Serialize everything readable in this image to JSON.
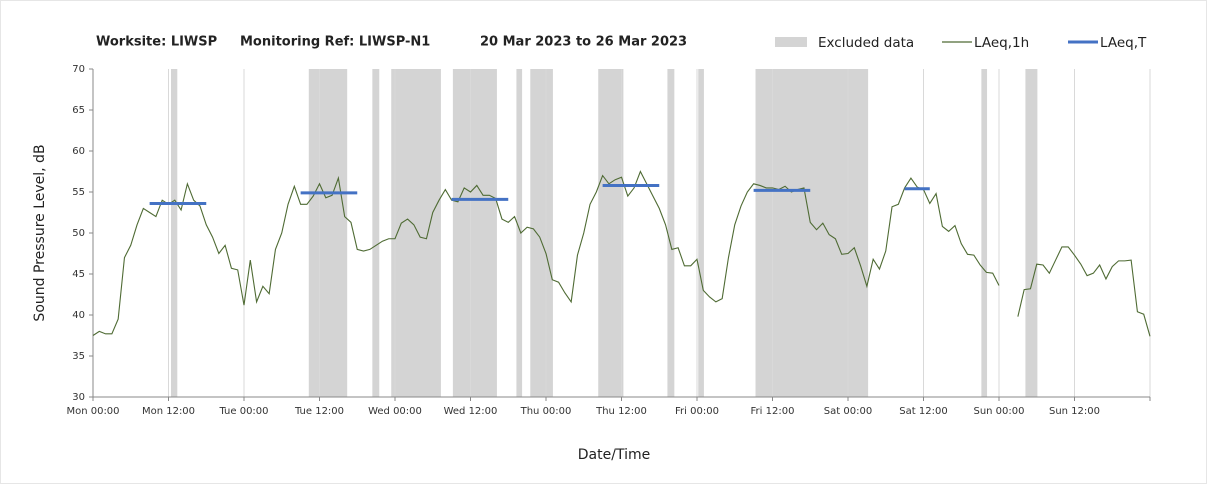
{
  "chart_data": {
    "type": "line",
    "title_parts": [
      "Worksite: LIWSP",
      "Monitoring Ref: LIWSP-N1",
      "20 Mar 2023 to 26 Mar 2023"
    ],
    "ylabel": "Sound Pressure Level, dB",
    "xlabel": "Date/Time",
    "xlim": [
      0,
      168
    ],
    "ylim": [
      30,
      70
    ],
    "yticks": [
      30,
      35,
      40,
      45,
      50,
      55,
      60,
      65,
      70
    ],
    "xticks": [
      {
        "value": 0,
        "label": "Mon 00:00"
      },
      {
        "value": 12,
        "label": "Mon 12:00"
      },
      {
        "value": 24,
        "label": "Tue 00:00"
      },
      {
        "value": 36,
        "label": "Tue 12:00"
      },
      {
        "value": 48,
        "label": "Wed 00:00"
      },
      {
        "value": 60,
        "label": "Wed 12:00"
      },
      {
        "value": 72,
        "label": "Thu 00:00"
      },
      {
        "value": 84,
        "label": "Thu 12:00"
      },
      {
        "value": 96,
        "label": "Fri 00:00"
      },
      {
        "value": 108,
        "label": "Fri 12:00"
      },
      {
        "value": 120,
        "label": "Sat 00:00"
      },
      {
        "value": 132,
        "label": "Sat 12:00"
      },
      {
        "value": 144,
        "label": "Sun 00:00"
      },
      {
        "value": 156,
        "label": "Sun 12:00"
      },
      {
        "value": 168,
        "label": ""
      }
    ],
    "grid": true,
    "excluded": {
      "name": "Excluded data",
      "color": "#d4d4d4",
      "ranges": [
        [
          12.4,
          13.4
        ],
        [
          34.3,
          40.4
        ],
        [
          44.4,
          45.5
        ],
        [
          47.4,
          55.3
        ],
        [
          57.2,
          64.2
        ],
        [
          67.3,
          68.2
        ],
        [
          69.5,
          73.1
        ],
        [
          80.3,
          84.3
        ],
        [
          91.3,
          92.4
        ],
        [
          96.2,
          97.1
        ],
        [
          105.3,
          123.2
        ],
        [
          141.2,
          142.1
        ],
        [
          148.2,
          150.1
        ]
      ]
    },
    "x": [
      0,
      1,
      2,
      3,
      4,
      5,
      6,
      7,
      8,
      9,
      10,
      11,
      12,
      13,
      14,
      15,
      16,
      17,
      18,
      19,
      20,
      21,
      22,
      23,
      24,
      25,
      26,
      27,
      28,
      29,
      30,
      31,
      32,
      33,
      34,
      35,
      36,
      37,
      38,
      39,
      40,
      41,
      42,
      43,
      44,
      45,
      46,
      47,
      48,
      49,
      50,
      51,
      52,
      53,
      54,
      55,
      56,
      57,
      58,
      59,
      60,
      61,
      62,
      63,
      64,
      65,
      66,
      67,
      68,
      69,
      70,
      71,
      72,
      73,
      74,
      75,
      76,
      77,
      78,
      79,
      80,
      81,
      82,
      83,
      84,
      85,
      86,
      87,
      88,
      89,
      90,
      91,
      92,
      93,
      94,
      95,
      96,
      97,
      98,
      99,
      100,
      101,
      102,
      103,
      104,
      105,
      106,
      107,
      108,
      109,
      110,
      111,
      112,
      113,
      114,
      115,
      116,
      117,
      118,
      119,
      120,
      121,
      122,
      123,
      124,
      125,
      126,
      127,
      128,
      129,
      130,
      131,
      132,
      133,
      134,
      135,
      136,
      137,
      138,
      139,
      140,
      141,
      142,
      143,
      144,
      145,
      146,
      147,
      148,
      149,
      150,
      151,
      152,
      153,
      154,
      155,
      156,
      157,
      158,
      159,
      160,
      161,
      162,
      163,
      164,
      165,
      166,
      167,
      168
    ],
    "series": [
      {
        "name": "LAeq,1h",
        "color": "#4f6b34",
        "values": [
          37.5,
          38,
          37.7,
          37.7,
          39.5,
          47,
          48.5,
          51,
          53,
          52.5,
          52,
          54,
          53.5,
          54,
          52.8,
          56,
          54,
          53.3,
          51,
          49.5,
          47.5,
          48.5,
          45.7,
          45.5,
          41.2,
          46.7,
          41.6,
          43.5,
          42.6,
          48,
          50,
          53.5,
          55.7,
          53.5,
          53.5,
          54.5,
          56,
          54.3,
          54.6,
          56.7,
          52,
          51.3,
          48,
          47.8,
          48,
          48.5,
          49,
          49.3,
          49.3,
          51.2,
          51.7,
          51,
          49.5,
          49.3,
          52.5,
          54,
          55.3,
          54,
          53.8,
          55.5,
          55,
          55.8,
          54.6,
          54.6,
          54.2,
          51.7,
          51.3,
          52,
          50,
          50.7,
          50.5,
          49.5,
          47.5,
          44.3,
          44,
          42.7,
          41.6,
          47.3,
          50,
          53.5,
          55,
          57,
          56,
          56.5,
          56.8,
          54.5,
          55.5,
          57.5,
          56,
          54.5,
          53,
          51,
          48,
          48.2,
          46,
          46,
          46.8,
          43,
          42.2,
          41.6,
          42,
          47,
          51,
          53.3,
          55,
          56,
          55.8,
          55.5,
          55.5,
          55.3,
          55.7,
          55,
          55.3,
          55.5,
          51.3,
          50.4,
          51.2,
          49.8,
          49.3,
          47.4,
          47.5,
          48.2,
          46,
          43.5,
          46.8,
          45.6,
          47.8,
          53.2,
          53.5,
          55.5,
          56.7,
          55.6,
          55.3,
          53.6,
          54.8,
          50.8,
          50.2,
          50.9,
          48.7,
          47.4,
          47.3,
          46.1,
          45.2,
          45.1,
          43.6,
          null,
          null,
          39.8,
          43.1,
          43.2,
          46.2,
          46.1,
          45.1,
          46.7,
          48.3,
          48.3,
          47.3,
          46.2,
          44.8,
          45.1,
          46.1,
          44.4,
          45.9,
          46.6,
          46.6,
          46.7,
          40.4,
          40.1,
          37.4
        ]
      }
    ],
    "periods": {
      "name": "LAeq,T",
      "color": "#4472c4",
      "segments": [
        {
          "x": [
            9,
            18
          ],
          "value": 53.6
        },
        {
          "x": [
            33,
            42
          ],
          "value": 54.9
        },
        {
          "x": [
            57,
            66
          ],
          "value": 54.1
        },
        {
          "x": [
            81,
            90
          ],
          "value": 55.8
        },
        {
          "x": [
            105,
            114
          ],
          "value": 55.2
        },
        {
          "x": [
            129,
            133
          ],
          "value": 55.4
        }
      ]
    }
  }
}
